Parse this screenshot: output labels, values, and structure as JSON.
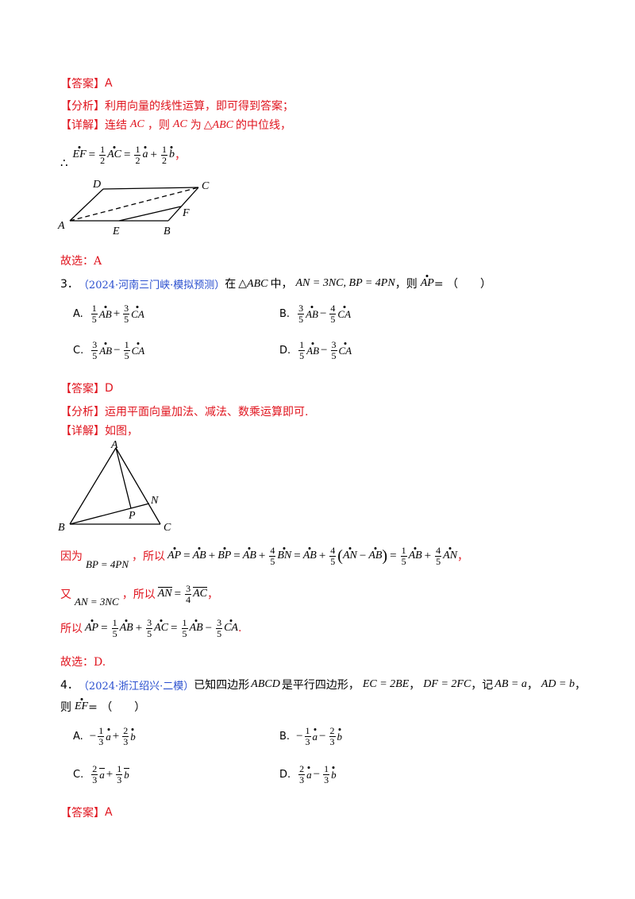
{
  "s1": {
    "answer_tag": "【答案】",
    "answer": "A",
    "analysis_tag": "【分析】",
    "analysis": "利用向量的线性运算，即可得到答案；",
    "detail_tag": "【详解】",
    "detail_a": "连结",
    "detail_ac1": "AC",
    "detail_b": "，则",
    "detail_ac2": "AC",
    "detail_c": "为",
    "detail_tri": "△ABC",
    "detail_d": "的中位线，",
    "therefore": "∴",
    "eq": {
      "ef": "EF",
      "eq1": "=",
      "half1": [
        "1",
        "2"
      ],
      "ac": "AC",
      "eq2": "=",
      "half2": [
        "1",
        "2"
      ],
      "a": "a",
      "plus": "+",
      "half3": [
        "1",
        "2"
      ],
      "b": "b",
      "tail": "，"
    },
    "figure_labels": [
      "D",
      "C",
      "F",
      "A",
      "E",
      "B"
    ],
    "conclusion": "故选：A"
  },
  "q3": {
    "num": "3．",
    "src": "（2024·河南三门峡·模拟预测）",
    "pre": "在",
    "tri": "△ABC",
    "mid": "中，",
    "cond": "AN = 3NC, BP = 4PN",
    "comma": "，则",
    "ask": "AP",
    "ask_tail": " = （　　）",
    "options": [
      {
        "label": "A.",
        "c1": [
          "1",
          "5"
        ],
        "v1": "AB",
        "op": "+",
        "c2": [
          "3",
          "5"
        ],
        "v2": "CA"
      },
      {
        "label": "B.",
        "c1": [
          "3",
          "5"
        ],
        "v1": "AB",
        "op": "−",
        "c2": [
          "4",
          "5"
        ],
        "v2": "CA"
      },
      {
        "label": "C.",
        "c1": [
          "3",
          "5"
        ],
        "v1": "AB",
        "op": "−",
        "c2": [
          "1",
          "5"
        ],
        "v2": "CA"
      },
      {
        "label": "D.",
        "c1": [
          "1",
          "5"
        ],
        "v1": "AB",
        "op": "−",
        "c2": [
          "3",
          "5"
        ],
        "v2": "CA"
      }
    ],
    "answer_tag": "【答案】",
    "answer": "D",
    "analysis_tag": "【分析】",
    "analysis": "运用平面向量加法、减法、数乘运算即可.",
    "detail_tag": "【详解】",
    "detail": "如图，",
    "figure_labels": [
      "A",
      "N",
      "P",
      "B",
      "C"
    ],
    "l1_pre": "因为",
    "l1_cond": "BP = 4PN",
    "l1_so": "，所以",
    "l1_eq": {
      "t1": "AP",
      "e1": "=",
      "t2": "AB",
      "p1": "+",
      "t3": "BP",
      "e2": "=",
      "t4": "AB",
      "p2": "+",
      "f1": [
        "4",
        "5"
      ],
      "t5": "BN",
      "e3": "=",
      "t6": "AB",
      "p3": "+",
      "f2": [
        "4",
        "5"
      ],
      "t7": "AN",
      "m1": "−",
      "t8": "AB",
      "e4": "=",
      "f3": [
        "1",
        "5"
      ],
      "t9": "AB",
      "p4": "+",
      "f4": [
        "4",
        "5"
      ],
      "t10": "AN",
      "tail": "，"
    },
    "l2_pre": "又",
    "l2_cond": "AN = 3NC",
    "l2_so": "，所以",
    "l2_an": "AN",
    "l2_eq": "=",
    "l2_f": [
      "3",
      "4"
    ],
    "l2_ac": "AC",
    "l2_tail": "，",
    "l3_pre": "所以",
    "l3_eq": {
      "t1": "AP",
      "e1": "=",
      "f1": [
        "1",
        "5"
      ],
      "t2": "AB",
      "p1": "+",
      "f2": [
        "3",
        "5"
      ],
      "t3": "AC",
      "e2": "=",
      "f3": [
        "1",
        "5"
      ],
      "t4": "AB",
      "m1": "−",
      "f4": [
        "3",
        "5"
      ],
      "t5": "CA",
      "tail": "."
    },
    "conclusion": "故选：D."
  },
  "q4": {
    "num": "4．",
    "src": "（2024·浙江绍兴·二模）",
    "stem_a": "已知四边形",
    "quad": "ABCD",
    "stem_b": "是平行四边形，",
    "c1": "EC = 2BE",
    "sep1": "，",
    "c2": "DF = 2FC",
    "sep2": "，记",
    "c3": "AB = a",
    "sep3": "，",
    "c4": "AD = b",
    "sep4": "，",
    "line2_pre": "则",
    "ask": "EF",
    "ask_tail": " = （　　）",
    "options": [
      {
        "label": "A.",
        "s1": "−",
        "c1": [
          "1",
          "3"
        ],
        "v1": "a",
        "op": "+",
        "c2": [
          "2",
          "3"
        ],
        "v2": "b"
      },
      {
        "label": "B.",
        "s1": "−",
        "c1": [
          "1",
          "3"
        ],
        "v1": "a",
        "op": "−",
        "c2": [
          "2",
          "3"
        ],
        "v2": "b"
      },
      {
        "label": "C.",
        "s1": "",
        "c1": [
          "2",
          "3"
        ],
        "v1": "a",
        "op": "+",
        "c2": [
          "1",
          "3"
        ],
        "v2": "b"
      },
      {
        "label": "D.",
        "s1": "",
        "c1": [
          "2",
          "3"
        ],
        "v1": "a",
        "op": "−",
        "c2": [
          "1",
          "3"
        ],
        "v2": "b"
      }
    ],
    "answer_tag": "【答案】",
    "answer": "A"
  }
}
